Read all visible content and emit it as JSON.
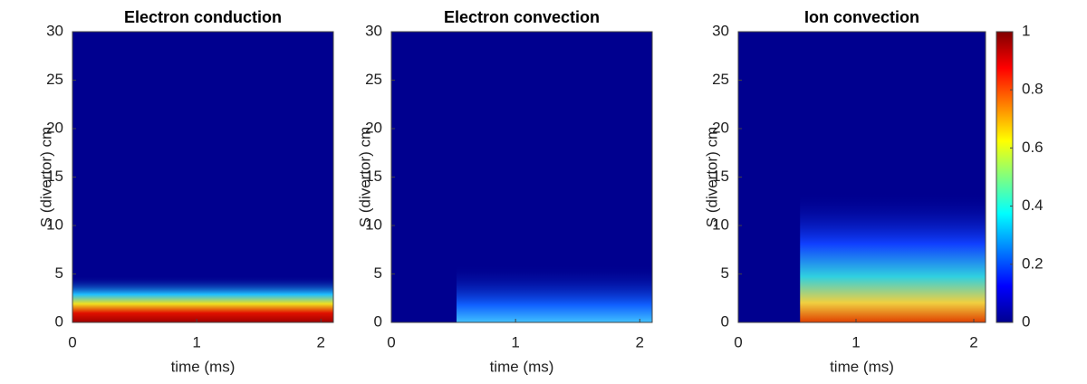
{
  "chart_data": [
    {
      "type": "heatmap",
      "title": "Electron conduction",
      "xlabel": "time (ms)",
      "ylabel": "S (divertor) cm",
      "xlim": [
        0,
        2.1
      ],
      "ylim": [
        0,
        30
      ],
      "xticks": [
        0,
        1,
        2
      ],
      "yticks": [
        0,
        5,
        10,
        15,
        20,
        25,
        30
      ],
      "colormap": "jet"
    },
    {
      "type": "heatmap",
      "title": "Electron convection",
      "xlabel": "time (ms)",
      "ylabel": "S (divertor) cm",
      "xlim": [
        0,
        2.1
      ],
      "ylim": [
        0,
        30
      ],
      "xticks": [
        0,
        1,
        2
      ],
      "yticks": [
        0,
        5,
        10,
        15,
        20,
        25,
        30
      ],
      "colormap": "jet"
    },
    {
      "type": "heatmap",
      "title": "Ion convection",
      "xlabel": "time (ms)",
      "ylabel": "S (divertor) cm",
      "xlim": [
        0,
        2.1
      ],
      "ylim": [
        0,
        30
      ],
      "xticks": [
        0,
        1,
        2
      ],
      "yticks": [
        0,
        5,
        10,
        15,
        20,
        25,
        30
      ],
      "colormap": "jet"
    }
  ],
  "colorbar": {
    "lim": [
      0,
      1
    ],
    "ticks": [
      0,
      0.2,
      0.4,
      0.6,
      0.8,
      1
    ]
  }
}
